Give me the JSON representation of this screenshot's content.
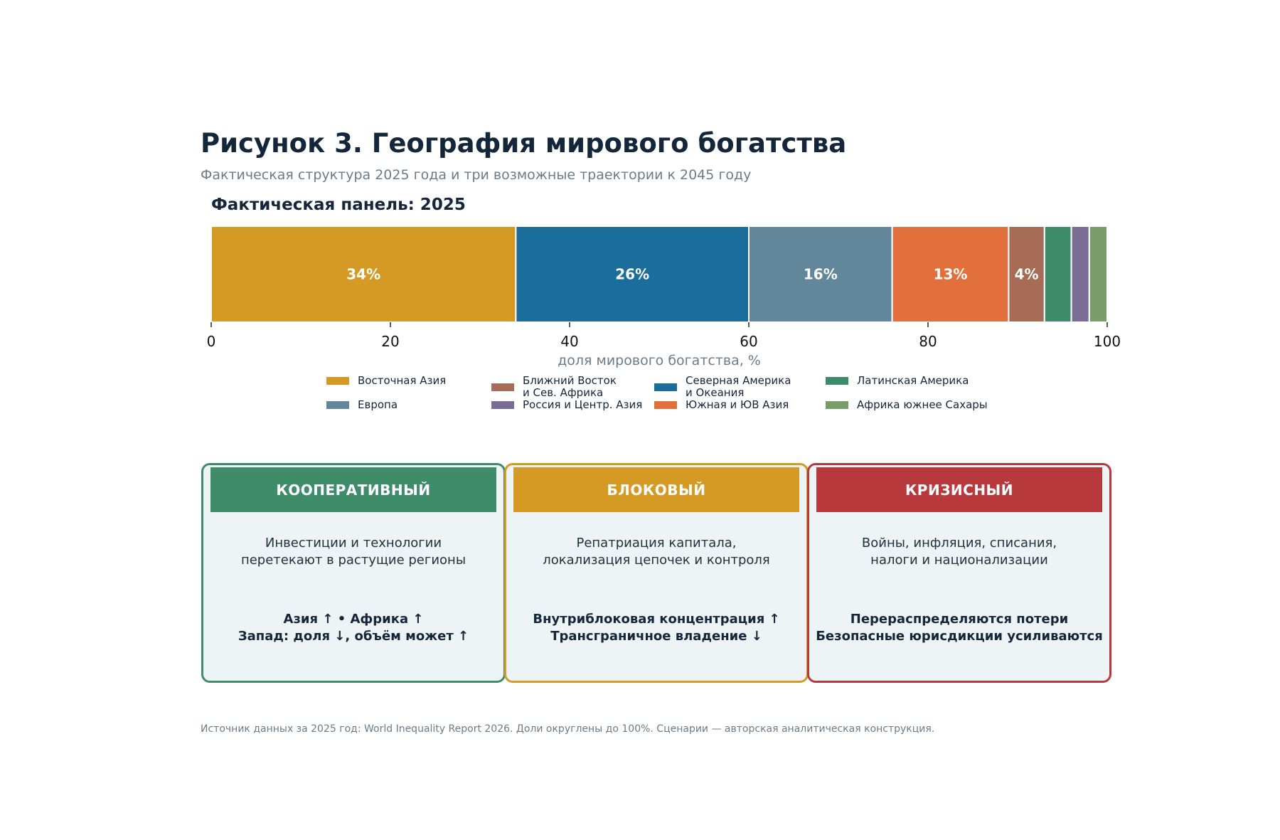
{
  "title": "Рисунок 3. География мирового богатства",
  "subtitle": "Фактическая структура 2025 года и три возможные траектории к 2045 году",
  "panel_title": "Фактическая панель: 2025",
  "chart_data": {
    "type": "bar",
    "orientation": "horizontal-stacked",
    "series": [
      {
        "name": "Восточная Азия",
        "value": 34,
        "label": "34%",
        "color": "#d49a24"
      },
      {
        "name": "Северная Америка\nи Океания",
        "value": 26,
        "label": "26%",
        "color": "#1b6e9c"
      },
      {
        "name": "Европа",
        "value": 16,
        "label": "16%",
        "color": "#62879a"
      },
      {
        "name": "Южная и ЮВ Азия",
        "value": 13,
        "label": "13%",
        "color": "#e2703c"
      },
      {
        "name": "Ближний Восток\nи Сев. Африка",
        "value": 4,
        "label": "4%",
        "color": "#a66c56"
      },
      {
        "name": "Латинская Америка",
        "value": 3,
        "label": "",
        "color": "#3e8c6a"
      },
      {
        "name": "Россия и Центр. Азия",
        "value": 2,
        "label": "",
        "color": "#7a6c92"
      },
      {
        "name": "Африка южнее Сахары",
        "value": 2,
        "label": "",
        "color": "#7a9c6a"
      }
    ],
    "xlim": [
      0,
      100
    ],
    "xticks": [
      0,
      20,
      40,
      60,
      80,
      100
    ],
    "xlabel": "доля мирового богатства, %",
    "legend_order": [
      0,
      2,
      4,
      6,
      1,
      3,
      5,
      7
    ],
    "legend_position": "below"
  },
  "scenarios": [
    {
      "title": "КООПЕРАТИВНЫЙ",
      "color": "#3e8c6a",
      "description": [
        "Инвестиции и технологии",
        "перетекают в растущие регионы"
      ],
      "effects": [
        "Азия ↑  •  Африка ↑",
        "Запад: доля ↓, объём может ↑"
      ]
    },
    {
      "title": "БЛОКОВЫЙ",
      "color": "#d49a24",
      "description": [
        "Репатриация капитала,",
        "локализация цепочек и контроля"
      ],
      "effects": [
        "Внутриблоковая концентрация ↑",
        "Трансграничное владение ↓"
      ]
    },
    {
      "title": "КРИЗИСНЫЙ",
      "color": "#b8393b",
      "description": [
        "Войны, инфляция, списания,",
        "налоги и национализации"
      ],
      "effects": [
        "Перераспределяются потери",
        "Безопасные юрисдикции усиливаются"
      ]
    }
  ],
  "source": "Источник данных за 2025 год: World Inequality Report 2026. Доли округлены до 100%. Сценарии — авторская аналитическая конструкция."
}
